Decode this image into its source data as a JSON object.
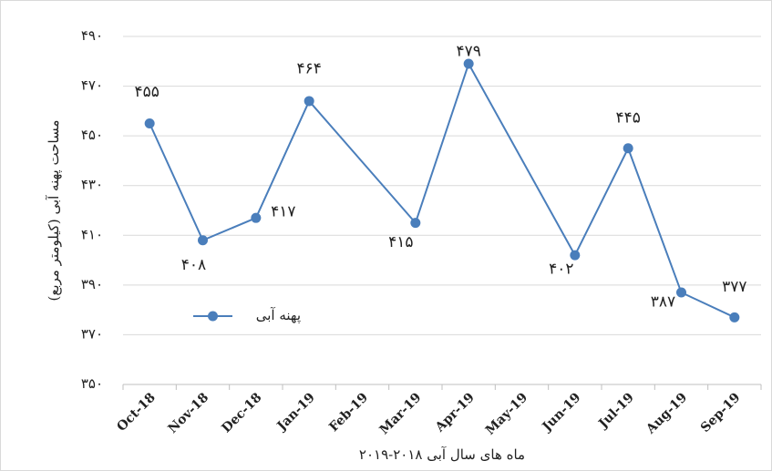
{
  "chart_data": {
    "type": "line",
    "x_label": "ماه های سال آبی ۲۰۱۸-۲۰۱۹",
    "y_label": "مساحت پهنه آبی (کیلومتر مربع)",
    "categories": [
      "Oct-18",
      "Nov-18",
      "Dec-18",
      "Jan-19",
      "Feb-19",
      "Mar-19",
      "Apr-19",
      "May-19",
      "Jun-19",
      "Jul-19",
      "Aug-19",
      "Sep-19"
    ],
    "series": [
      {
        "name": "پهنه آبی",
        "color": "#4a7ebb",
        "values": [
          455,
          408,
          417,
          464,
          null,
          415,
          479,
          null,
          402,
          445,
          387,
          377
        ],
        "value_labels": [
          "۴۵۵",
          "۴۰۸",
          "۴۱۷",
          "۴۶۴",
          null,
          "۴۱۵",
          "۴۷۹",
          null,
          "۴۰۲",
          "۴۴۵",
          "۳۸۷",
          "۳۷۷"
        ]
      }
    ],
    "ylim": [
      350,
      490
    ],
    "yticks": [
      {
        "value": 350,
        "label": "۳۵۰"
      },
      {
        "value": 370,
        "label": "۳۷۰"
      },
      {
        "value": 390,
        "label": "۳۹۰"
      },
      {
        "value": 410,
        "label": "۴۱۰"
      },
      {
        "value": 430,
        "label": "۴۳۰"
      },
      {
        "value": 450,
        "label": "۴۵۰"
      },
      {
        "value": 470,
        "label": "۴۷۰"
      },
      {
        "value": 490,
        "label": "۴۹۰"
      }
    ],
    "grid": true,
    "connect_gaps": true,
    "legend_position": "left"
  }
}
